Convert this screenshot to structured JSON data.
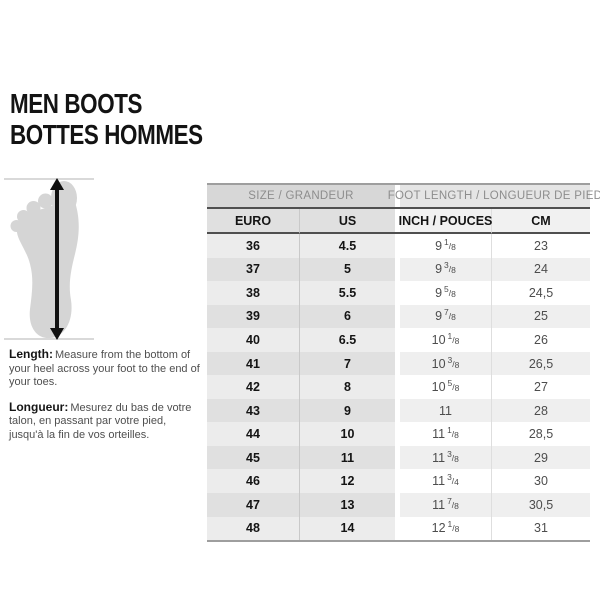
{
  "title": {
    "line1": "MEN BOOTS",
    "line2": "BOTTES HOMMES"
  },
  "instructions": {
    "length_label": "Length:",
    "length_text": "Measure from the bottom of your heel across your foot to the end of your toes.",
    "longueur_label": "Longueur:",
    "longueur_text": "Mesurez du bas de votre talon, en passant par votre pied, jusqu'à la fin de vos orteilles."
  },
  "table": {
    "group_headers": [
      {
        "label": "SIZE / GRANDEUR"
      },
      {
        "label": "FOOT LENGTH / LONGUEUR DE PIED"
      }
    ],
    "columns": [
      "EURO",
      "US",
      "INCH / POUCES",
      "CM"
    ],
    "rows": [
      {
        "euro": "36",
        "us": "4.5",
        "inch": "9 1/8",
        "cm": "23"
      },
      {
        "euro": "37",
        "us": "5",
        "inch": "9 3/8",
        "cm": "24"
      },
      {
        "euro": "38",
        "us": "5.5",
        "inch": "9 5/8",
        "cm": "24,5"
      },
      {
        "euro": "39",
        "us": "6",
        "inch": "9 7/8",
        "cm": "25"
      },
      {
        "euro": "40",
        "us": "6.5",
        "inch": "10 1/8",
        "cm": "26"
      },
      {
        "euro": "41",
        "us": "7",
        "inch": "10 3/8",
        "cm": "26,5"
      },
      {
        "euro": "42",
        "us": "8",
        "inch": "10 5/8",
        "cm": "27"
      },
      {
        "euro": "43",
        "us": "9",
        "inch": "11",
        "cm": "28"
      },
      {
        "euro": "44",
        "us": "10",
        "inch": "11 1/8",
        "cm": "28,5"
      },
      {
        "euro": "45",
        "us": "11",
        "inch": "11 3/8",
        "cm": "29"
      },
      {
        "euro": "46",
        "us": "12",
        "inch": "11 3/4",
        "cm": "30"
      },
      {
        "euro": "47",
        "us": "13",
        "inch": "11 7/8",
        "cm": "30,5"
      },
      {
        "euro": "48",
        "us": "14",
        "inch": "12 1/8",
        "cm": "31"
      }
    ]
  },
  "figure": {
    "description": "foot-length-measurement-diagram"
  },
  "colors": {
    "title_text": "#131313",
    "body_text": "#4f4f4f",
    "label_text": "#161616",
    "group_header_text": "#8d8d8d",
    "group_left_bg": "#d7d7d7",
    "group_right_bg": "#e5e5e5",
    "sub_left_bg": "#e0e0e0",
    "sub_right_bg": "#f1f1f1",
    "row_left_light": "#ececec",
    "row_left_dark": "#e0e0e0",
    "row_right_light": "#ffffff",
    "row_right_dark": "#efefef",
    "cell_text_left": "#141414",
    "cell_text_right": "#4d4d4d",
    "header_line": "#4f4f4f",
    "outer_line": "#9e9e9e",
    "sep_left": "#c9c9c9",
    "sep_right": "#dedede",
    "foot_fill": "#d5d5d5",
    "arrow": "#111111",
    "guide_line": "#b3b3b3"
  }
}
